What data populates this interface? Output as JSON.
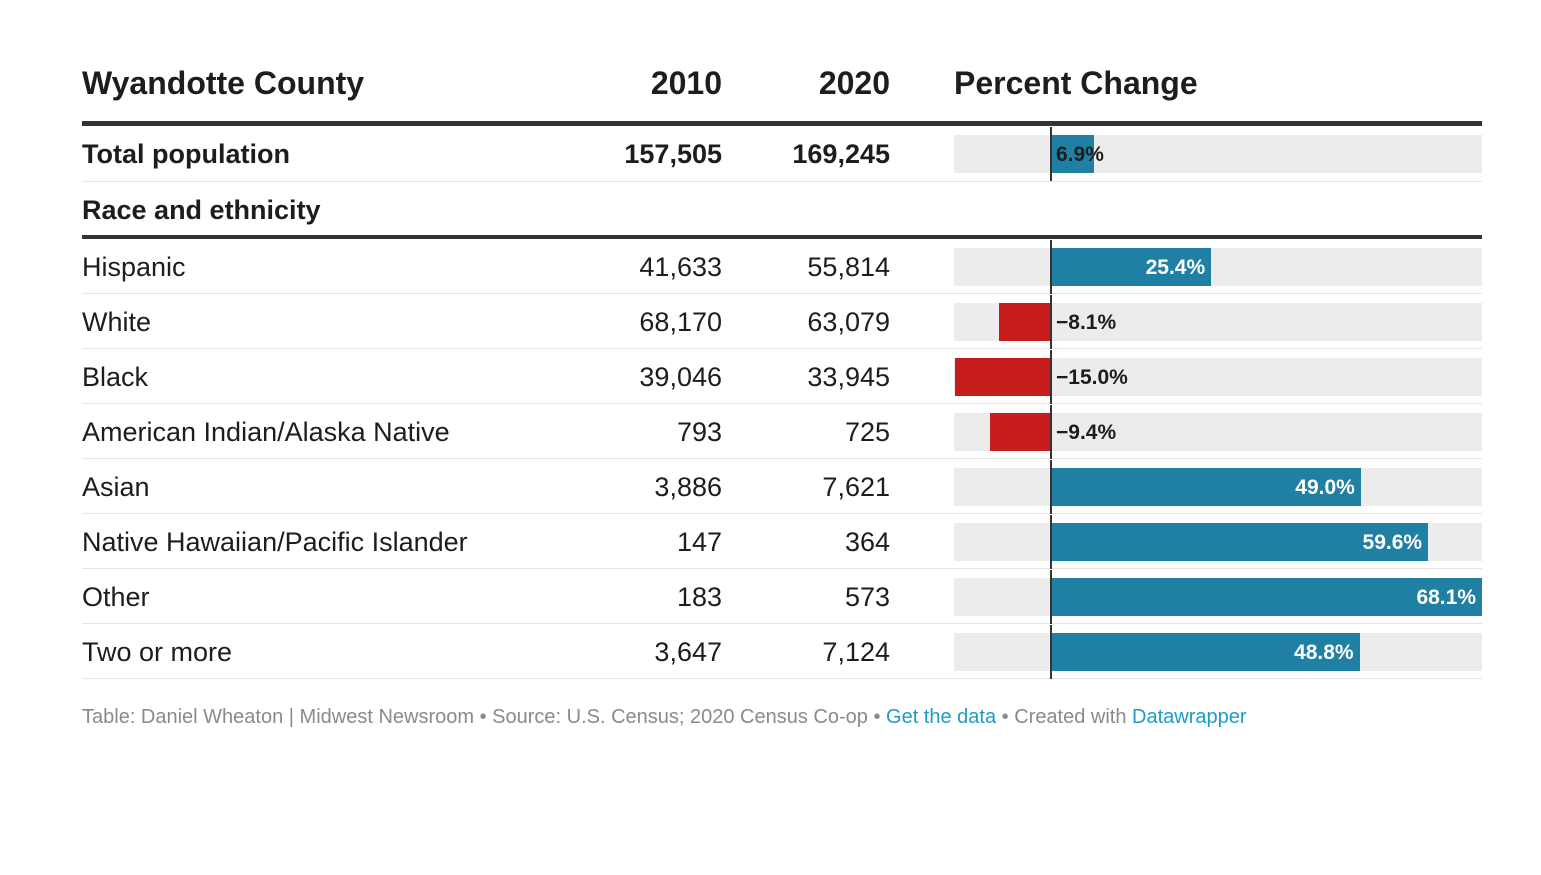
{
  "header": {
    "title": "Wyandotte County",
    "col_2010": "2010",
    "col_2020": "2020",
    "col_change": "Percent Change"
  },
  "group_label": "Race and ethnicity",
  "colors": {
    "positive": "#2080a3",
    "negative": "#c71e1d",
    "track": "#ececec"
  },
  "chart_data": {
    "type": "table",
    "columns": [
      "Wyandotte County",
      "2010",
      "2020",
      "Percent Change"
    ],
    "rows": [
      {
        "label": "Total population",
        "v2010": "157,505",
        "v2020": "169,245",
        "change": 6.9,
        "change_label": "6.9%",
        "bold": true
      },
      {
        "label": "Hispanic",
        "v2010": "41,633",
        "v2020": "55,814",
        "change": 25.4,
        "change_label": "25.4%"
      },
      {
        "label": "White",
        "v2010": "68,170",
        "v2020": "63,079",
        "change": -8.1,
        "change_label": "−8.1%"
      },
      {
        "label": "Black",
        "v2010": "39,046",
        "v2020": "33,945",
        "change": -15.0,
        "change_label": "−15.0%"
      },
      {
        "label": "American Indian/Alaska Native",
        "v2010": "793",
        "v2020": "725",
        "change": -9.4,
        "change_label": "−9.4%"
      },
      {
        "label": "Asian",
        "v2010": "3,886",
        "v2020": "7,621",
        "change": 49.0,
        "change_label": "49.0%"
      },
      {
        "label": "Native Hawaiian/Pacific Islander",
        "v2010": "147",
        "v2020": "364",
        "change": 59.6,
        "change_label": "59.6%"
      },
      {
        "label": "Other",
        "v2010": "183",
        "v2020": "573",
        "change": 68.1,
        "change_label": "68.1%"
      },
      {
        "label": "Two or more",
        "v2010": "3,647",
        "v2020": "7,124",
        "change": 48.8,
        "change_label": "48.8%"
      }
    ],
    "change_range": [
      -15.0,
      68.1
    ]
  },
  "footer": {
    "text1": "Table: Daniel Wheaton | Midwest Newsroom • Source: U.S. Census; 2020 Census Co-op • ",
    "link1": "Get the data",
    "text2": " • Created with ",
    "link2": "Datawrapper"
  }
}
